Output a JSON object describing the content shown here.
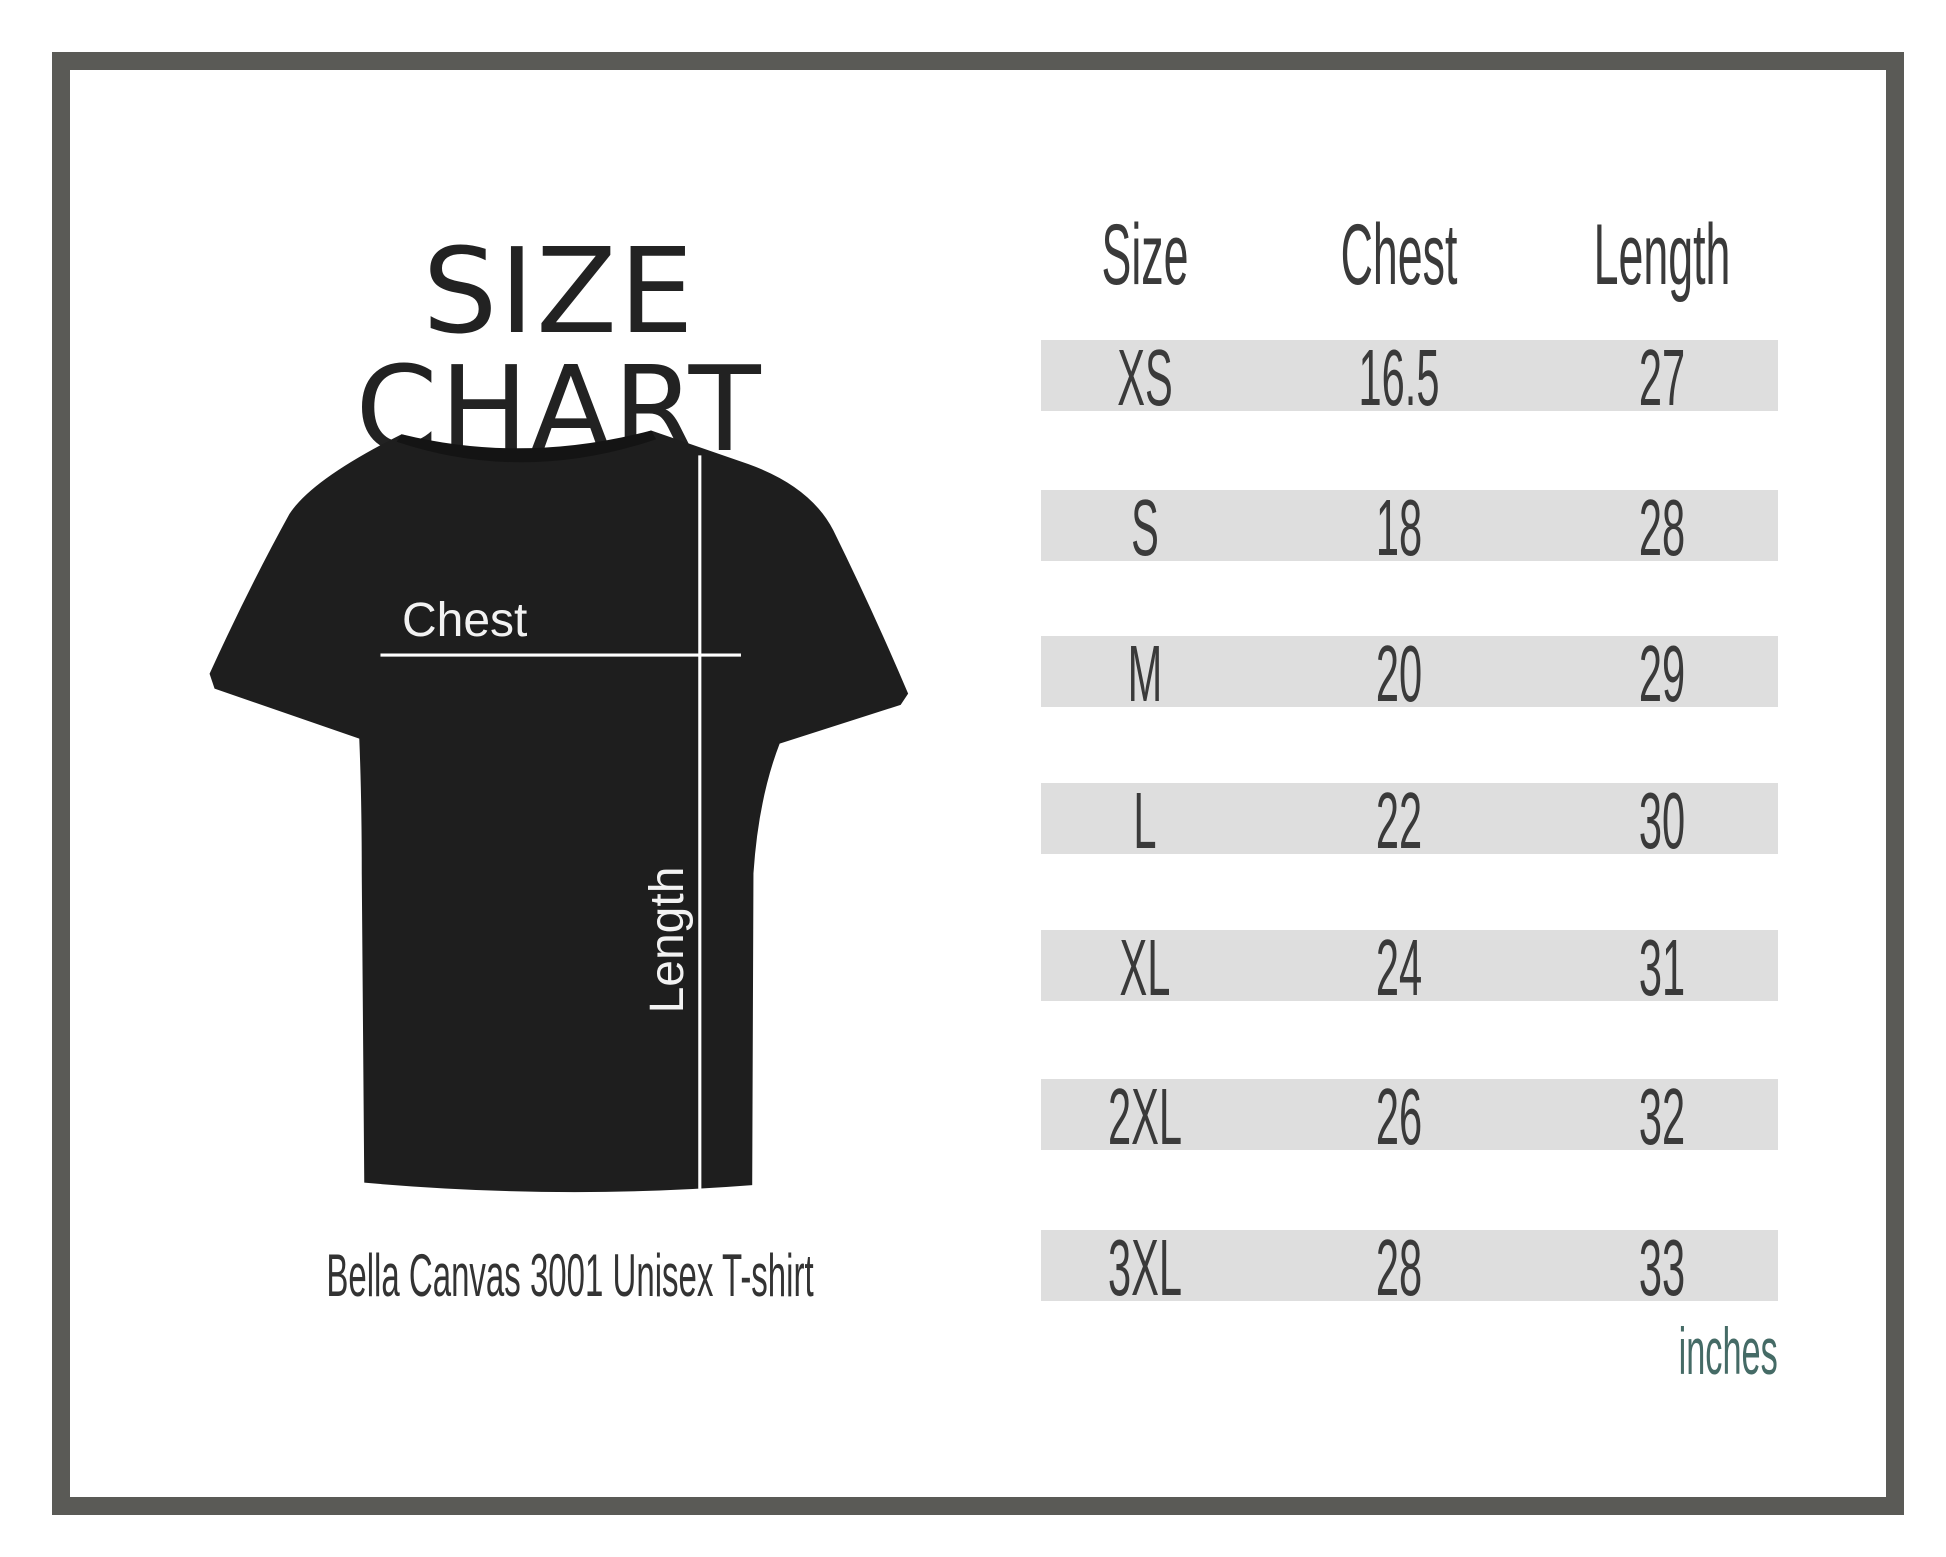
{
  "title": "SIZE CHART",
  "shirt": {
    "chest_label": "Chest",
    "length_label": "Length",
    "caption": "Bella Canvas 3001 Unisex T-shirt"
  },
  "table": {
    "headers": [
      "Size",
      "Chest",
      "Length"
    ],
    "rows": [
      [
        "XS",
        "16.5",
        "27"
      ],
      [
        "S",
        "18",
        "28"
      ],
      [
        "M",
        "20",
        "29"
      ],
      [
        "L",
        "22",
        "30"
      ],
      [
        "XL",
        "24",
        "31"
      ],
      [
        "2XL",
        "26",
        "32"
      ],
      [
        "3XL",
        "28",
        "33"
      ]
    ],
    "unit": "inches"
  },
  "colors": {
    "border": "#5a5a56",
    "row_band": "#dedede",
    "unit_text": "#456b66",
    "shirt": "#1e1e1e"
  }
}
